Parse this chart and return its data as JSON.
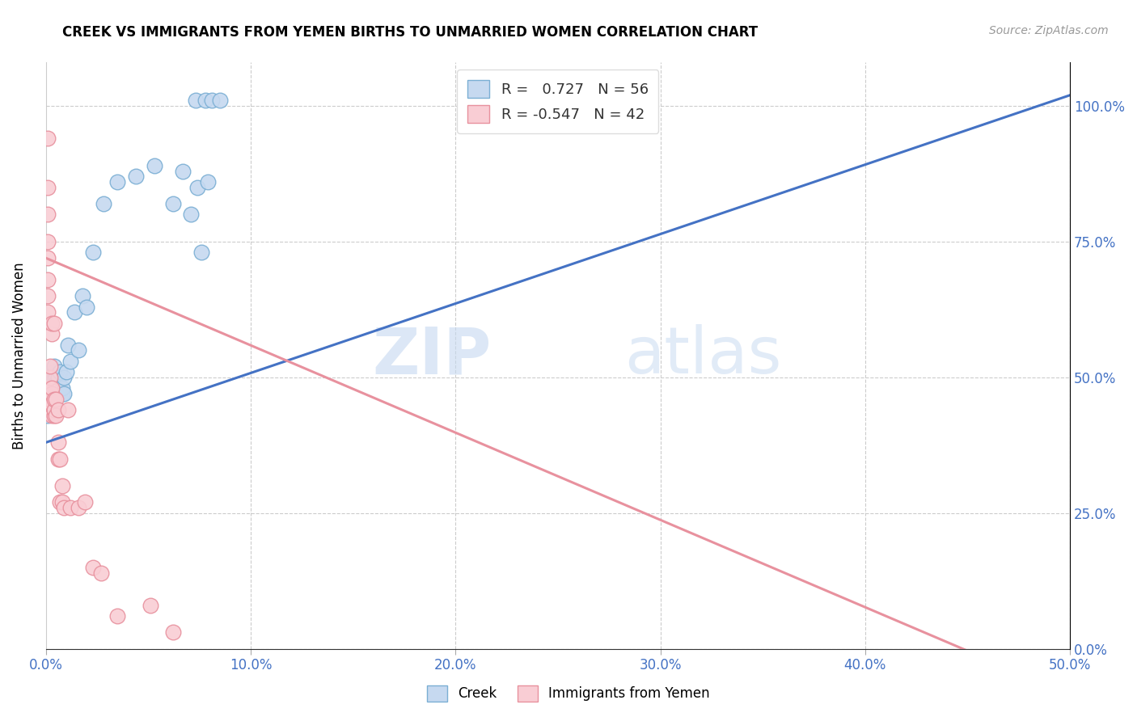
{
  "title": "CREEK VS IMMIGRANTS FROM YEMEN BIRTHS TO UNMARRIED WOMEN CORRELATION CHART",
  "source": "Source: ZipAtlas.com",
  "ylabel": "Births to Unmarried Women",
  "xlim": [
    0.0,
    0.5
  ],
  "ylim": [
    0.0,
    1.08
  ],
  "creek_R": 0.727,
  "creek_N": 56,
  "yemen_R": -0.547,
  "yemen_N": 42,
  "creek_color": "#c6d9f0",
  "creek_edge_color": "#7bafd4",
  "yemen_color": "#f9cdd4",
  "yemen_edge_color": "#e8919e",
  "creek_line_color": "#4472c4",
  "yemen_line_color": "#e8919e",
  "legend_label_creek": "Creek",
  "legend_label_yemen": "Immigrants from Yemen",
  "watermark_zip": "ZIP",
  "watermark_atlas": "atlas",
  "x_tick_vals": [
    0.0,
    0.1,
    0.2,
    0.3,
    0.4,
    0.5
  ],
  "y_tick_vals": [
    0.0,
    0.25,
    0.5,
    0.75,
    1.0
  ],
  "creek_line_x": [
    0.0,
    0.5
  ],
  "creek_line_y": [
    0.38,
    1.02
  ],
  "yemen_line_x": [
    0.0,
    0.46
  ],
  "yemen_line_y": [
    0.72,
    -0.02
  ],
  "creek_scatter_x": [
    0.001,
    0.001,
    0.001,
    0.001,
    0.002,
    0.002,
    0.002,
    0.002,
    0.002,
    0.003,
    0.003,
    0.003,
    0.003,
    0.003,
    0.003,
    0.004,
    0.004,
    0.004,
    0.004,
    0.004,
    0.005,
    0.005,
    0.005,
    0.005,
    0.006,
    0.006,
    0.006,
    0.007,
    0.007,
    0.007,
    0.008,
    0.008,
    0.009,
    0.009,
    0.01,
    0.011,
    0.012,
    0.014,
    0.016,
    0.018,
    0.02,
    0.023,
    0.028,
    0.035,
    0.044,
    0.053,
    0.062,
    0.067,
    0.071,
    0.073,
    0.074,
    0.076,
    0.078,
    0.079,
    0.081,
    0.085
  ],
  "creek_scatter_y": [
    0.43,
    0.45,
    0.46,
    0.47,
    0.44,
    0.46,
    0.47,
    0.48,
    0.46,
    0.45,
    0.45,
    0.47,
    0.48,
    0.46,
    0.47,
    0.5,
    0.51,
    0.52,
    0.46,
    0.47,
    0.5,
    0.48,
    0.49,
    0.47,
    0.5,
    0.47,
    0.48,
    0.51,
    0.48,
    0.47,
    0.47,
    0.48,
    0.5,
    0.47,
    0.51,
    0.56,
    0.53,
    0.62,
    0.55,
    0.65,
    0.63,
    0.73,
    0.82,
    0.86,
    0.87,
    0.89,
    0.82,
    0.88,
    0.8,
    1.01,
    0.85,
    0.73,
    1.01,
    0.86,
    1.01,
    1.01
  ],
  "yemen_scatter_x": [
    0.001,
    0.001,
    0.001,
    0.001,
    0.001,
    0.001,
    0.001,
    0.001,
    0.002,
    0.002,
    0.002,
    0.002,
    0.002,
    0.003,
    0.003,
    0.003,
    0.003,
    0.003,
    0.003,
    0.004,
    0.004,
    0.004,
    0.004,
    0.005,
    0.005,
    0.006,
    0.006,
    0.006,
    0.007,
    0.007,
    0.008,
    0.008,
    0.009,
    0.011,
    0.012,
    0.016,
    0.019,
    0.023,
    0.027,
    0.035,
    0.051,
    0.062
  ],
  "yemen_scatter_y": [
    0.62,
    0.65,
    0.68,
    0.72,
    0.75,
    0.8,
    0.85,
    0.94,
    0.44,
    0.46,
    0.48,
    0.5,
    0.52,
    0.43,
    0.45,
    0.47,
    0.48,
    0.58,
    0.6,
    0.43,
    0.44,
    0.46,
    0.6,
    0.43,
    0.46,
    0.35,
    0.38,
    0.44,
    0.27,
    0.35,
    0.27,
    0.3,
    0.26,
    0.44,
    0.26,
    0.26,
    0.27,
    0.15,
    0.14,
    0.06,
    0.08,
    0.03
  ]
}
